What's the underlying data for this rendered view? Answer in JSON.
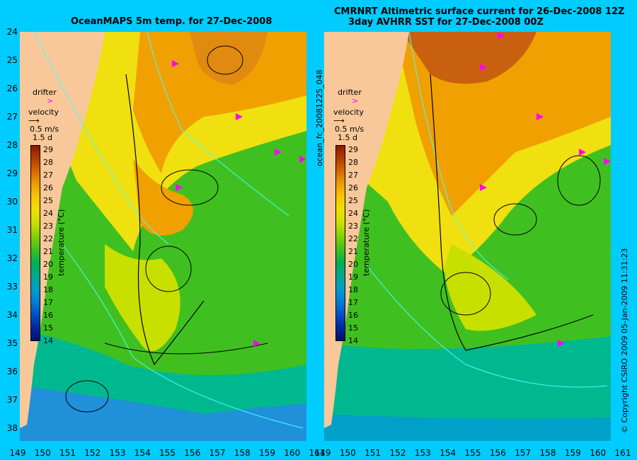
{
  "titles": {
    "left": "OceanMAPS 5m temp. for 27-Dec-2008",
    "right_line1": "CMRNRT Altimetric surface current for 26-Dec-2008 12Z",
    "right_line2": "3day AVHRR SST for 27-Dec-2008 00Z"
  },
  "side_labels": {
    "product_id": "ocean_fc_20081225_048",
    "copyright": "© Copyright CSIRO 2009   05-Jan-2009 11:31:23"
  },
  "legend": {
    "drifter": "drifter",
    "velocity": "velocity",
    "speed": "0.5 m/s",
    "duration": "1.5 d",
    "colorbar_label": "temperature (°C)"
  },
  "axes": {
    "lat_labels": [
      "24",
      "25",
      "26",
      "27",
      "28",
      "29",
      "30",
      "31",
      "32",
      "33",
      "34",
      "35",
      "36",
      "37",
      "38"
    ],
    "lon_labels": [
      "149",
      "150",
      "151",
      "152",
      "153",
      "154",
      "155",
      "156",
      "157",
      "158",
      "159",
      "160",
      "161"
    ]
  },
  "colorbar": {
    "ticks": [
      "29",
      "28",
      "27",
      "26",
      "25",
      "24",
      "23",
      "22",
      "21",
      "20",
      "19",
      "18",
      "17",
      "16",
      "15",
      "14"
    ],
    "colors": [
      "#8b1a00",
      "#b53d00",
      "#d86a00",
      "#f0a000",
      "#f8c800",
      "#f0e000",
      "#c8e000",
      "#80d000",
      "#40c020",
      "#00b050",
      "#00a890",
      "#00a0c8",
      "#0080d8",
      "#0050c8",
      "#0028a0",
      "#001070"
    ]
  },
  "map_colors": {
    "land": "#f8c89a",
    "warm": "#e08a10",
    "hot": "#c86010",
    "yellow": "#f0e010",
    "green": "#40c020",
    "cool": "#00b890",
    "cold": "#2090d8",
    "drifter": "#ff00ff",
    "isoline": "#40ffff"
  }
}
